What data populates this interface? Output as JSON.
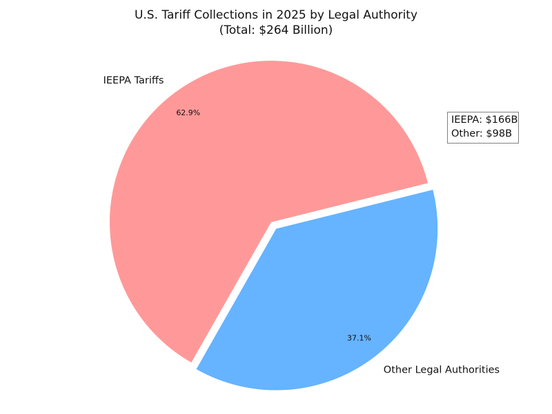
{
  "chart_data": {
    "type": "pie",
    "title": "U.S. Tariff Collections in 2025 by Legal Authority",
    "subtitle": "(Total: $264 Billion)",
    "slices": [
      {
        "label": "IEEPA Tariffs",
        "value": 166,
        "percent_label": "62.9%",
        "color": "#ff9999",
        "exploded": false
      },
      {
        "label": "Other Legal Authorities",
        "value": 98,
        "percent_label": "37.1%",
        "color": "#66b3ff",
        "exploded": true
      }
    ],
    "annotation": {
      "lines": [
        "IEEPA: $166B",
        "Other: $98B"
      ]
    }
  }
}
